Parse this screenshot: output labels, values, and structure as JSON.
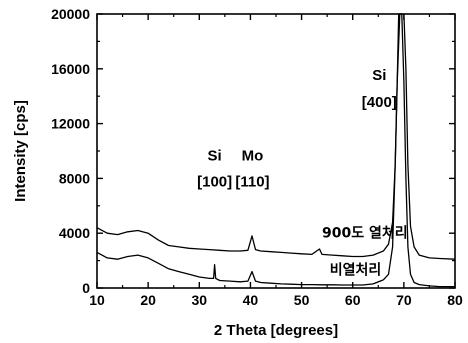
{
  "chart_data": {
    "type": "line",
    "xlabel": "2 Theta [degrees]",
    "ylabel": "Intensity [cps]",
    "xlim": [
      10,
      80
    ],
    "ylim": [
      0,
      20000
    ],
    "x_ticks": [
      10,
      20,
      30,
      40,
      50,
      60,
      70,
      80
    ],
    "y_ticks": [
      0,
      4000,
      8000,
      12000,
      16000,
      20000
    ],
    "x_tick_labels": [
      "10",
      "20",
      "30",
      "40",
      "50",
      "60",
      "70",
      "80"
    ],
    "y_tick_labels": [
      "0",
      "4000",
      "8000",
      "12000",
      "16000",
      "20000"
    ],
    "grid": false,
    "series": [
      {
        "name": "900도 열처리",
        "x": [
          10,
          12,
          14,
          16,
          18,
          20,
          22,
          24,
          26,
          28,
          30,
          32,
          34,
          36,
          38,
          39.5,
          40.3,
          41,
          42,
          44,
          46,
          48,
          50,
          52,
          53.5,
          54,
          56,
          58,
          60,
          62,
          64,
          66,
          67,
          67.8,
          68.3,
          68.7,
          69,
          69.2,
          69.6,
          70,
          70.4,
          70.8,
          71.3,
          72,
          73,
          75,
          77,
          80
        ],
        "y": [
          4400,
          4000,
          3900,
          4100,
          4200,
          4000,
          3500,
          3100,
          3000,
          2900,
          2850,
          2800,
          2750,
          2700,
          2700,
          2750,
          3800,
          2800,
          2700,
          2650,
          2600,
          2550,
          2500,
          2450,
          2850,
          2450,
          2400,
          2350,
          2300,
          2300,
          2400,
          2700,
          3200,
          4800,
          9000,
          15000,
          20000,
          20000,
          20000,
          20000,
          16000,
          9000,
          4500,
          3000,
          2400,
          2200,
          2150,
          2100
        ]
      },
      {
        "name": "비열처리",
        "x": [
          10,
          12,
          14,
          16,
          18,
          20,
          22,
          24,
          26,
          28,
          30,
          32,
          32.8,
          33,
          33.2,
          34,
          36,
          38,
          39.5,
          40.3,
          41,
          42,
          44,
          46,
          48,
          50,
          52,
          54,
          56,
          58,
          60,
          62,
          64,
          66,
          67,
          67.8,
          68.3,
          68.7,
          69.2,
          69.6,
          70,
          70.4,
          70.8,
          71.3,
          72,
          73,
          75,
          77,
          80
        ],
        "y": [
          2600,
          2200,
          2100,
          2300,
          2400,
          2200,
          1800,
          1400,
          1200,
          1000,
          800,
          700,
          700,
          1700,
          700,
          550,
          500,
          450,
          500,
          1200,
          500,
          400,
          350,
          300,
          280,
          250,
          250,
          230,
          230,
          220,
          220,
          220,
          300,
          600,
          1000,
          3000,
          9000,
          15000,
          20000,
          20000,
          15000,
          8000,
          3000,
          1000,
          400,
          250,
          150,
          100,
          100
        ]
      }
    ],
    "annotations": [
      {
        "text": "Si",
        "x": 33,
        "y": 9300
      },
      {
        "text": "[100]",
        "x": 33,
        "y": 7400
      },
      {
        "text": "Mo",
        "x": 40.4,
        "y": 9300
      },
      {
        "text": "[110]",
        "x": 40.4,
        "y": 7400
      },
      {
        "text": "Si",
        "x": 65.2,
        "y": 15200
      },
      {
        "text": "[400]",
        "x": 65.2,
        "y": 13200
      },
      {
        "text": "900도 열처리",
        "x": 54,
        "y": 3700
      },
      {
        "text": "비열처리",
        "x": 55.5,
        "y": 1000
      }
    ]
  }
}
